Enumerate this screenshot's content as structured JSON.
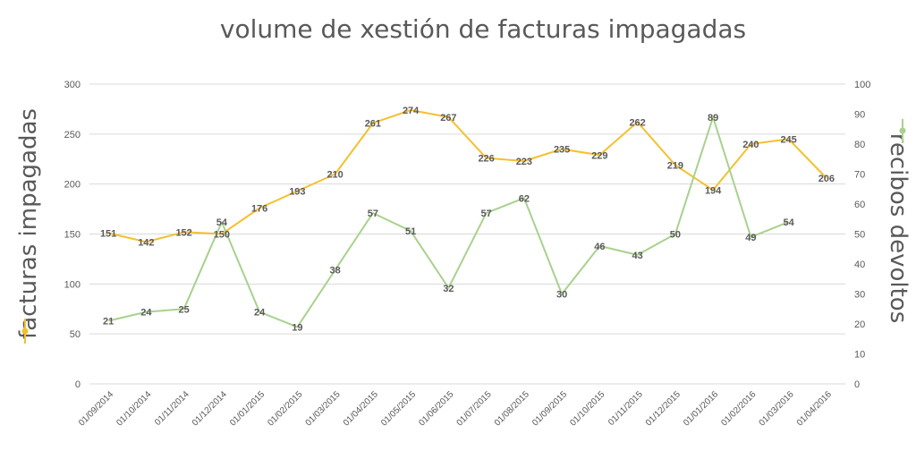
{
  "chart_data": {
    "type": "line",
    "title": "volume de xestión de facturas impagadas",
    "categories": [
      "01/09/2014",
      "01/10/2014",
      "01/11/2014",
      "01/12/2014",
      "01/01/2015",
      "01/02/2015",
      "01/03/2015",
      "01/04/2015",
      "01/05/2015",
      "01/06/2015",
      "01/07/2015",
      "01/08/2015",
      "01/09/2015",
      "01/10/2015",
      "01/11/2015",
      "01/12/2015",
      "01/01/2016",
      "01/02/2016",
      "01/03/2016",
      "01/04/2016"
    ],
    "y_left": {
      "label": "facturas impagadas",
      "ylim": [
        0,
        300
      ],
      "ticks": [
        "0",
        "50",
        "100",
        "150",
        "200",
        "250",
        "300"
      ]
    },
    "y_right": {
      "label": "recibos devoltos",
      "ylim": [
        0,
        100
      ],
      "ticks": [
        "0",
        "10",
        "20",
        "30",
        "40",
        "50",
        "60",
        "70",
        "80",
        "90",
        "100"
      ]
    },
    "series": [
      {
        "name": "facturas impagadas",
        "axis": "left",
        "color": "#f5c02e",
        "values": [
          151,
          142,
          152,
          150,
          176,
          193,
          210,
          261,
          274,
          267,
          226,
          223,
          235,
          229,
          262,
          219,
          194,
          240,
          245,
          206
        ]
      },
      {
        "name": "recibos devoltos",
        "axis": "right",
        "color": "#a9d18e",
        "values": [
          21,
          24,
          25,
          54,
          24,
          19,
          38,
          57,
          51,
          32,
          57,
          62,
          30,
          46,
          43,
          50,
          89,
          49,
          54,
          null
        ]
      }
    ],
    "grid": true
  }
}
